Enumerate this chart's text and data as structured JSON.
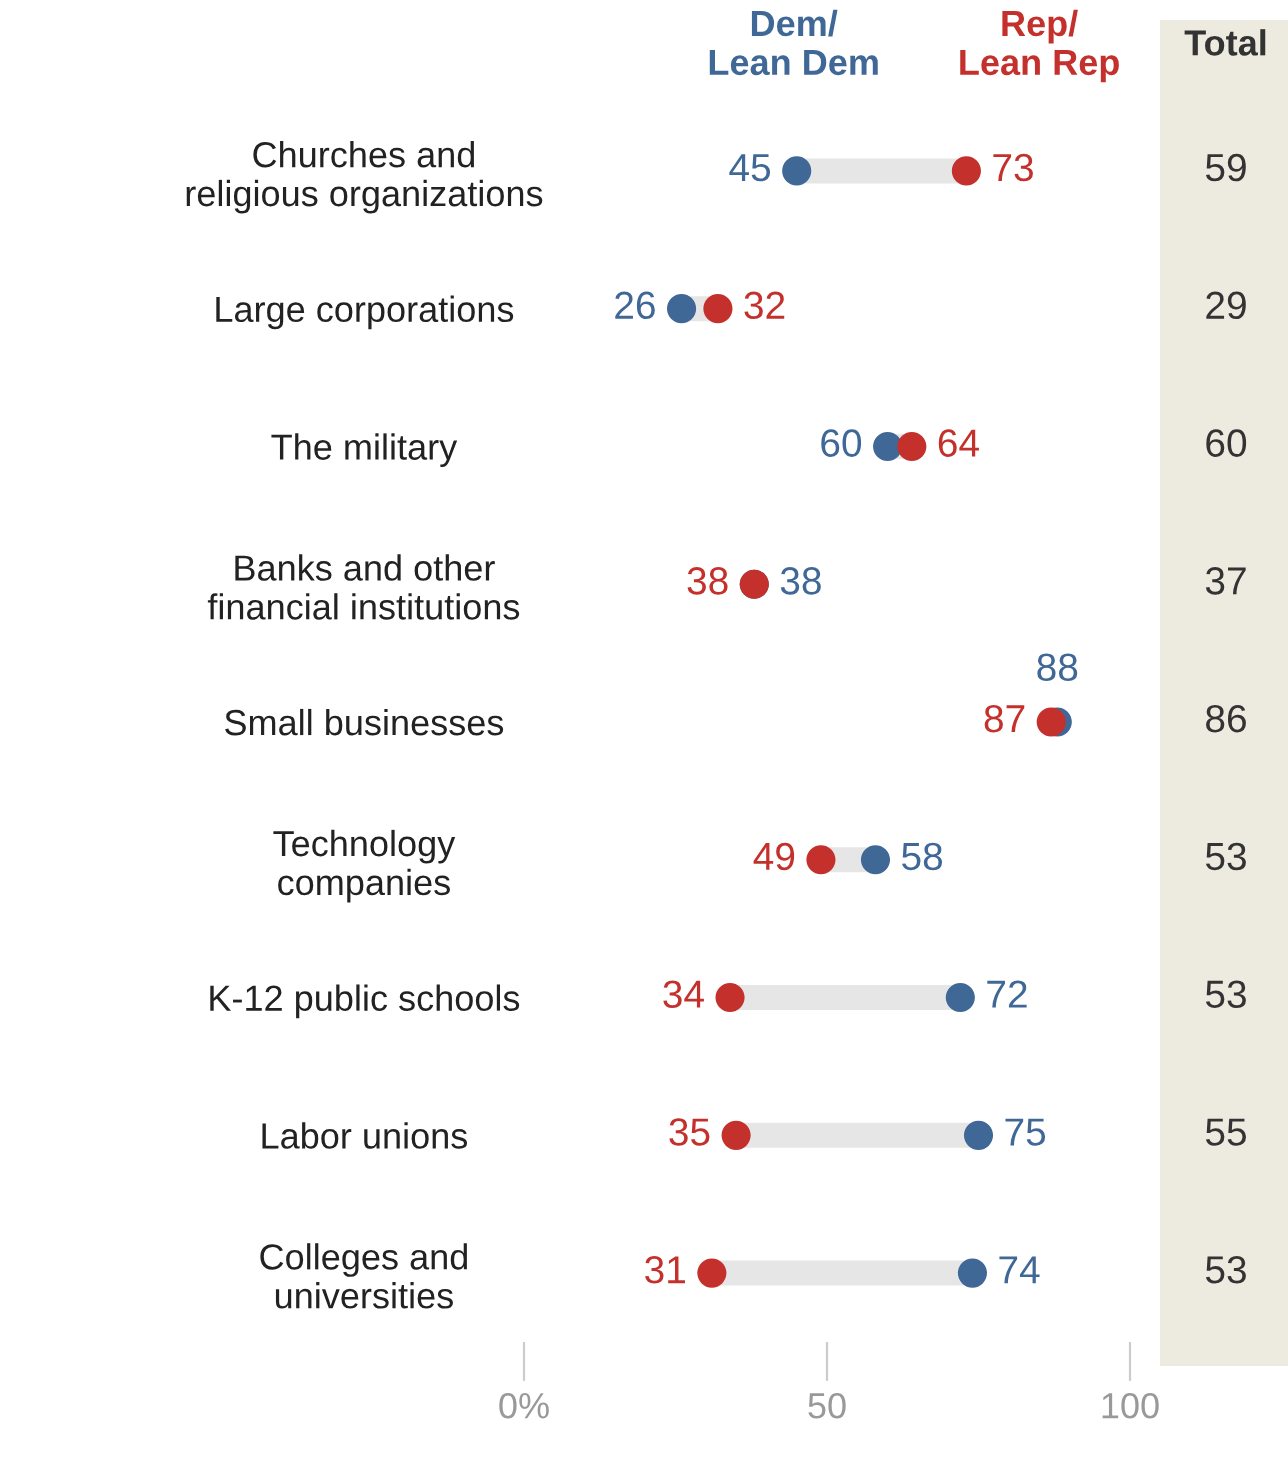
{
  "chart_data": {
    "type": "scatter",
    "orientation": "horizontal",
    "marker": "circle",
    "grid": false,
    "legend": "top",
    "data_labels": true,
    "categories": [
      "Churches and\nreligious organizations",
      "Large corporations",
      "The military",
      "Banks and other\nfinancial institutions",
      "Small businesses",
      "Technology\ncompanies",
      "K-12 public schools",
      "Labor unions",
      "Colleges and\nuniversities"
    ],
    "series": [
      {
        "name": "Dem/\nLean Dem",
        "color": "#3f6896",
        "values": [
          45,
          26,
          60,
          38,
          88,
          58,
          72,
          75,
          74
        ]
      },
      {
        "name": "Rep/\nLean Rep",
        "color": "#c4302b",
        "values": [
          73,
          32,
          64,
          38,
          87,
          49,
          34,
          35,
          31
        ]
      }
    ],
    "totals": [
      "59",
      "29",
      "60",
      "37",
      "86",
      "53",
      "53",
      "55",
      "53"
    ],
    "annotations": [
      "Total"
    ],
    "xlim": [
      0,
      100
    ],
    "xticks": [
      {
        "value": 0,
        "label": "0%"
      },
      50,
      100
    ]
  }
}
